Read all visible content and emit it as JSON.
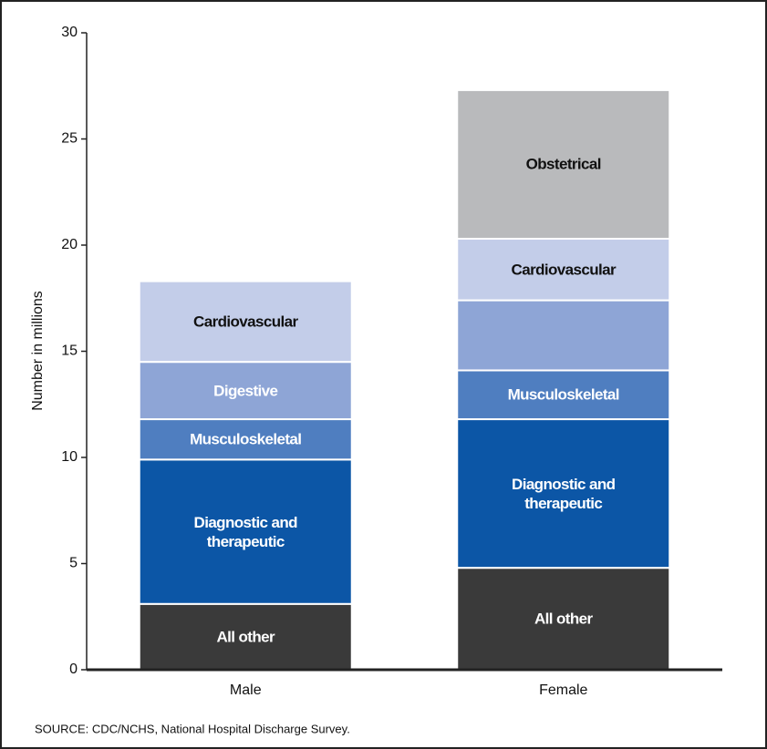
{
  "chart_data": {
    "type": "stacked_bar",
    "ylabel": "Number in millions",
    "source": "SOURCE: CDC/NCHS, National Hospital Discharge Survey.",
    "categories": [
      "Male",
      "Female"
    ],
    "series": [
      {
        "name": "All other",
        "color": "#3a3a3a",
        "label_color": "#ffffff",
        "labeled": [
          true,
          true
        ],
        "values": [
          3.1,
          4.8
        ]
      },
      {
        "name": "Diagnostic and therapeutic",
        "color": "#0c56a6",
        "label_color": "#ffffff",
        "labeled": [
          true,
          true
        ],
        "values": [
          6.8,
          7.0
        ]
      },
      {
        "name": "Musculoskeletal",
        "color": "#4f7ec0",
        "label_color": "#ffffff",
        "labeled": [
          true,
          true
        ],
        "values": [
          1.9,
          2.3
        ]
      },
      {
        "name": "Digestive",
        "color": "#8ea5d6",
        "label_color": "#ffffff",
        "labeled": [
          true,
          false
        ],
        "values": [
          2.7,
          3.3
        ]
      },
      {
        "name": "Cardiovascular",
        "color": "#c3cde9",
        "label_color": "#111111",
        "labeled": [
          true,
          true
        ],
        "values": [
          3.8,
          2.9
        ]
      },
      {
        "name": "Obstetrical",
        "color": "#b9babc",
        "label_color": "#111111",
        "labeled": [
          false,
          true
        ],
        "values": [
          null,
          7.0
        ]
      }
    ],
    "ylim": [
      0,
      30
    ],
    "yticks": [
      0,
      5,
      10,
      15,
      20,
      25,
      30
    ]
  }
}
